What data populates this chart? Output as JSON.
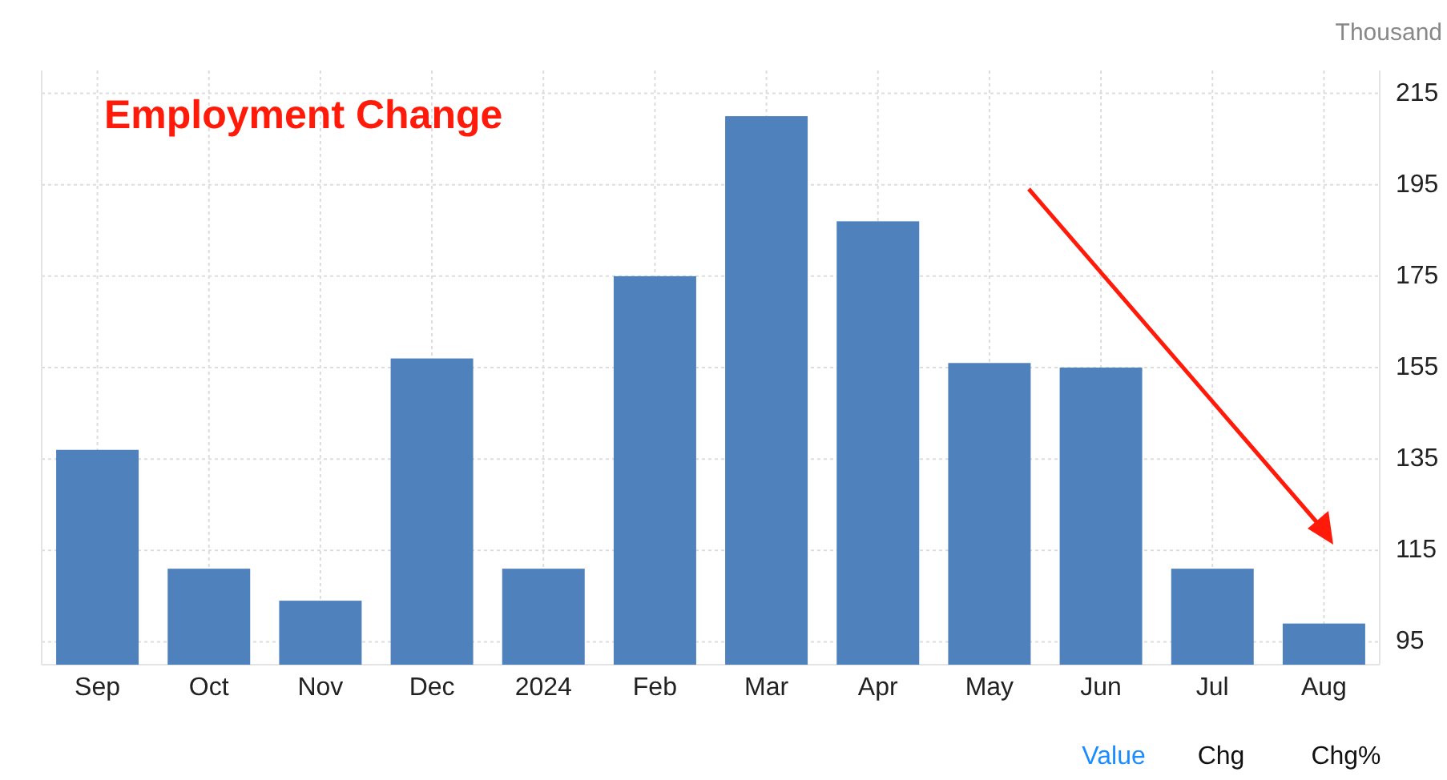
{
  "chart_data": {
    "type": "bar",
    "title": "Employment Change",
    "ylabel": "Thousand",
    "categories": [
      "Sep",
      "Oct",
      "Nov",
      "Dec",
      "2024",
      "Feb",
      "Mar",
      "Apr",
      "May",
      "Jun",
      "Jul",
      "Aug"
    ],
    "values": [
      137,
      111,
      104,
      157,
      111,
      175,
      210,
      187,
      156,
      155,
      111,
      99
    ],
    "color": "#4f81bd",
    "ylim": [
      90,
      220
    ],
    "yticks": [
      95,
      115,
      135,
      155,
      175,
      195,
      215
    ],
    "grid": true,
    "annotations": [
      "Value",
      "Chg",
      "Chg%"
    ]
  }
}
